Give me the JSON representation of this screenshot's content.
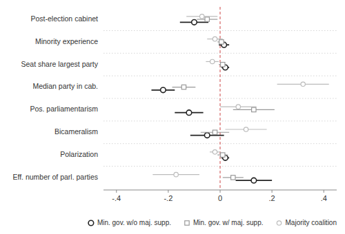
{
  "chart_data": {
    "type": "dot",
    "orientation": "horizontal",
    "categories": [
      "Post-election cabinet",
      "Minority experience",
      "Seat share largest party",
      "Median party in cab.",
      "Pos. parliamentarism",
      "Bicameralism",
      "Polarization",
      "Eff. number of parl. parties"
    ],
    "series": [
      {
        "name": "Min. gov. w/o maj. supp.",
        "color": "#222222",
        "marker": "circle",
        "values": [
          -0.1,
          0.015,
          0.02,
          -0.22,
          -0.12,
          -0.05,
          0.02,
          0.13
        ],
        "lower": [
          -0.155,
          -0.005,
          0.005,
          -0.265,
          -0.175,
          -0.115,
          0.005,
          0.06
        ],
        "upper": [
          -0.045,
          0.035,
          0.035,
          -0.175,
          -0.065,
          0.015,
          0.035,
          0.2
        ]
      },
      {
        "name": "Min. gov. w/ maj. supp.",
        "color": "#999999",
        "marker": "square",
        "values": [
          -0.05,
          0.005,
          0.01,
          -0.14,
          0.13,
          -0.02,
          0.01,
          0.05
        ],
        "lower": [
          -0.09,
          -0.01,
          -0.005,
          -0.185,
          0.05,
          -0.075,
          -0.01,
          0.01
        ],
        "upper": [
          -0.01,
          0.02,
          0.025,
          -0.095,
          0.21,
          0.035,
          0.03,
          0.09
        ]
      },
      {
        "name": "Majority coalition",
        "color": "#bbbbbb",
        "marker": "circle",
        "values": [
          -0.07,
          -0.02,
          -0.03,
          0.32,
          0.07,
          0.1,
          -0.02,
          -0.17
        ],
        "lower": [
          -0.13,
          -0.05,
          -0.055,
          0.22,
          0.0,
          0.02,
          -0.04,
          -0.26
        ],
        "upper": [
          -0.01,
          0.01,
          -0.005,
          0.42,
          0.14,
          0.18,
          0.0,
          -0.08
        ]
      }
    ],
    "xlim": [
      -0.45,
      0.45
    ],
    "xticks": [
      {
        "value": -0.4,
        "label": "-.4"
      },
      {
        "value": -0.2,
        "label": "-.2"
      },
      0,
      {
        "value": 0.2,
        "label": ".2"
      },
      {
        "value": 0.4,
        "label": ".4"
      }
    ],
    "vline": 0,
    "grid": true,
    "legend": "lower right"
  }
}
